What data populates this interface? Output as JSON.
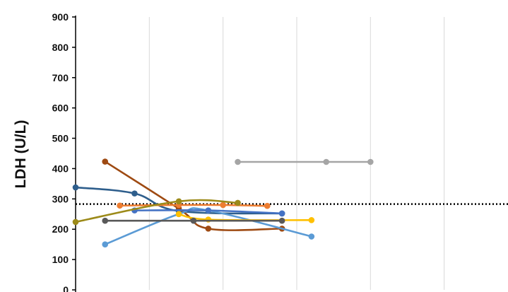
{
  "chart_data": {
    "type": "line",
    "ylabel": "LDH (U/L)",
    "ylim": [
      0,
      900
    ],
    "yticks": [
      0,
      100,
      200,
      300,
      400,
      500,
      600,
      700,
      800,
      900
    ],
    "xlim": [
      0,
      6
    ],
    "grid": true,
    "reference_line": {
      "value": 283,
      "style": "dotted",
      "color": "#000000"
    },
    "series": [
      {
        "color": "#2e5e8c",
        "points": [
          [
            0,
            338
          ],
          [
            0.8,
            318
          ],
          [
            1.4,
            260
          ],
          [
            2.8,
            252
          ]
        ]
      },
      {
        "color": "#9e4a12",
        "points": [
          [
            0.4,
            423
          ],
          [
            1.4,
            268
          ],
          [
            1.8,
            202
          ],
          [
            2.8,
            202
          ]
        ]
      },
      {
        "color": "#ed7d31",
        "points": [
          [
            0.6,
            278
          ],
          [
            1.4,
            280
          ],
          [
            2,
            280
          ],
          [
            2.6,
            277
          ]
        ]
      },
      {
        "color": "#5b9bd5",
        "points": [
          [
            0.4,
            150
          ],
          [
            1.4,
            250
          ],
          [
            1.8,
            262
          ],
          [
            3.2,
            176
          ]
        ]
      },
      {
        "color": "#4472c4",
        "points": [
          [
            0.8,
            262
          ],
          [
            1.8,
            262
          ],
          [
            2.8,
            252
          ]
        ]
      },
      {
        "color": "#ffc000",
        "points": [
          [
            1.4,
            250
          ],
          [
            1.8,
            232
          ],
          [
            3.2,
            230
          ]
        ]
      },
      {
        "color": "#9c8a19",
        "points": [
          [
            0,
            224
          ],
          [
            1.4,
            292
          ],
          [
            2.2,
            287
          ]
        ]
      },
      {
        "color": "#595959",
        "points": [
          [
            0.4,
            228
          ],
          [
            1.6,
            228
          ],
          [
            2.8,
            228
          ]
        ]
      },
      {
        "color": "#a5a5a5",
        "points": [
          [
            2.2,
            422
          ],
          [
            3.4,
            422
          ],
          [
            4,
            422
          ]
        ]
      }
    ]
  }
}
